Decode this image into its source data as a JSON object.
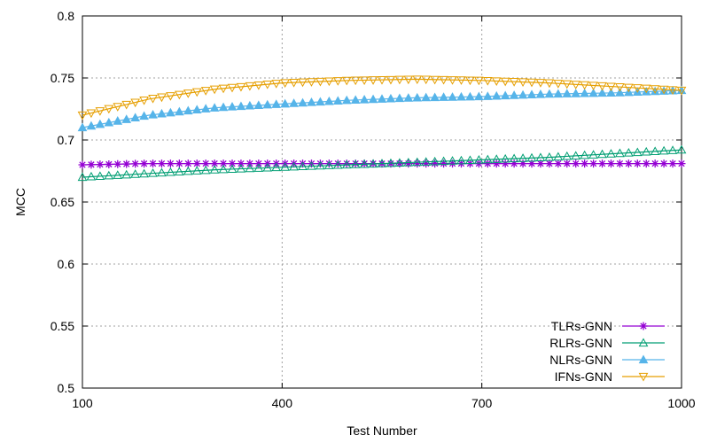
{
  "chart_data": {
    "type": "line",
    "title": "",
    "xlabel": "Test Number",
    "ylabel": "MCC",
    "xlim": [
      100,
      1000
    ],
    "ylim": [
      0.5,
      0.8
    ],
    "x_ticks": [
      100,
      400,
      700,
      1000
    ],
    "y_ticks": [
      0.5,
      0.55,
      0.6,
      0.65,
      0.7,
      0.75,
      0.8
    ],
    "x_tick_labels": [
      "100",
      "400",
      "700",
      "1000"
    ],
    "y_tick_labels": [
      "0.5",
      "0.55",
      "0.6",
      "0.65",
      "0.7",
      "0.75",
      "0.8"
    ],
    "grid": true,
    "legend_position": "bottom-right",
    "x": [
      100,
      200,
      300,
      400,
      500,
      600,
      700,
      800,
      900,
      1000
    ],
    "series": [
      {
        "name": "TLRs-GNN",
        "color": "#9400d3",
        "marker": "star",
        "values": [
          0.68,
          0.681,
          0.681,
          0.681,
          0.681,
          0.681,
          0.681,
          0.681,
          0.681,
          0.681
        ]
      },
      {
        "name": "RLRs-GNN",
        "color": "#009e73",
        "marker": "triangle-up-open",
        "values": [
          0.67,
          0.673,
          0.676,
          0.678,
          0.68,
          0.682,
          0.684,
          0.686,
          0.689,
          0.692
        ]
      },
      {
        "name": "NLRs-GNN",
        "color": "#56b4e9",
        "marker": "triangle-up-filled",
        "values": [
          0.71,
          0.72,
          0.726,
          0.729,
          0.732,
          0.734,
          0.735,
          0.737,
          0.738,
          0.74
        ]
      },
      {
        "name": "IFNs-GNN",
        "color": "#e69f00",
        "marker": "triangle-down-open",
        "values": [
          0.72,
          0.733,
          0.741,
          0.746,
          0.748,
          0.749,
          0.748,
          0.746,
          0.743,
          0.74
        ]
      }
    ]
  }
}
